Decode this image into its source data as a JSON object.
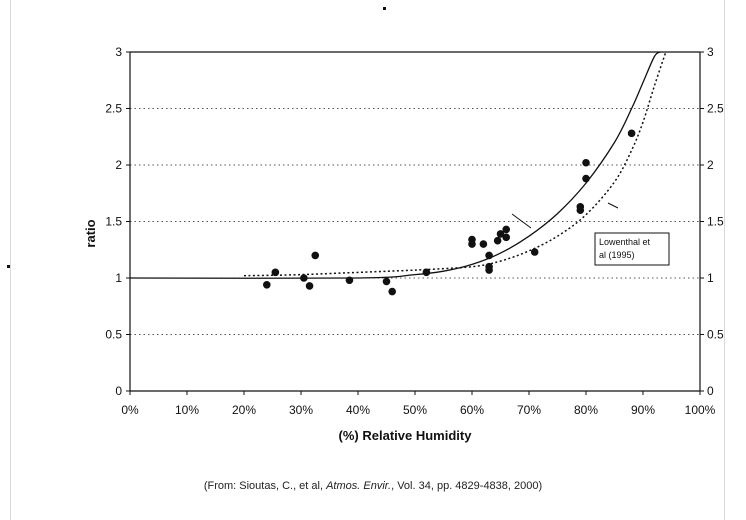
{
  "chart_data": {
    "type": "scatter",
    "xlabel": "(%) Relative Humidity",
    "ylabel": "ratio",
    "xlim": [
      0,
      100
    ],
    "ylim": [
      0,
      3
    ],
    "x_ticks": [
      "0%",
      "10%",
      "20%",
      "30%",
      "40%",
      "50%",
      "60%",
      "70%",
      "80%",
      "90%",
      "100%"
    ],
    "y_ticks_left": [
      "0",
      "0.5",
      "1",
      "1.5",
      "2",
      "2.5",
      "3"
    ],
    "y_ticks_right": [
      "0",
      "0.5",
      "1",
      "1.5",
      "2",
      "2.5",
      "3"
    ],
    "grid": "horizontal dotted",
    "points": [
      {
        "x": 24,
        "y": 0.94
      },
      {
        "x": 25.5,
        "y": 1.05
      },
      {
        "x": 30.5,
        "y": 1.0
      },
      {
        "x": 31.5,
        "y": 0.93
      },
      {
        "x": 32.5,
        "y": 1.2
      },
      {
        "x": 38.5,
        "y": 0.98
      },
      {
        "x": 45,
        "y": 0.97
      },
      {
        "x": 46,
        "y": 0.88
      },
      {
        "x": 52,
        "y": 1.05
      },
      {
        "x": 60,
        "y": 1.34
      },
      {
        "x": 60,
        "y": 1.3
      },
      {
        "x": 62,
        "y": 1.3
      },
      {
        "x": 63,
        "y": 1.2
      },
      {
        "x": 63,
        "y": 1.1
      },
      {
        "x": 63,
        "y": 1.07
      },
      {
        "x": 64.5,
        "y": 1.33
      },
      {
        "x": 65,
        "y": 1.39
      },
      {
        "x": 66,
        "y": 1.43
      },
      {
        "x": 66,
        "y": 1.36
      },
      {
        "x": 71,
        "y": 1.23
      },
      {
        "x": 79,
        "y": 1.63
      },
      {
        "x": 79,
        "y": 1.6
      },
      {
        "x": 80,
        "y": 2.02
      },
      {
        "x": 80,
        "y": 1.88
      },
      {
        "x": 88,
        "y": 2.28
      }
    ],
    "curves": [
      {
        "style": "solid",
        "x": [
          0,
          40,
          50,
          55,
          60,
          65,
          70,
          75,
          80,
          85,
          88,
          90,
          92,
          93
        ],
        "y": [
          1.0,
          1.0,
          1.03,
          1.06,
          1.12,
          1.22,
          1.37,
          1.57,
          1.84,
          2.2,
          2.5,
          2.73,
          2.96,
          3.0
        ]
      },
      {
        "style": "dotted",
        "x": [
          20,
          30,
          40,
          50,
          60,
          65,
          70,
          75,
          80,
          85,
          88,
          90,
          92,
          94
        ],
        "y": [
          1.02,
          1.03,
          1.05,
          1.07,
          1.1,
          1.15,
          1.24,
          1.37,
          1.56,
          1.85,
          2.13,
          2.38,
          2.7,
          3.0
        ]
      }
    ],
    "annotation": [
      "Lowenthal et",
      "al (1995)"
    ]
  },
  "caption": {
    "before": "(From: Sioutas, C., et al, ",
    "journal": "Atmos. Envir.",
    "after": ", Vol. 34, pp. 4829-4838, 2000)"
  }
}
